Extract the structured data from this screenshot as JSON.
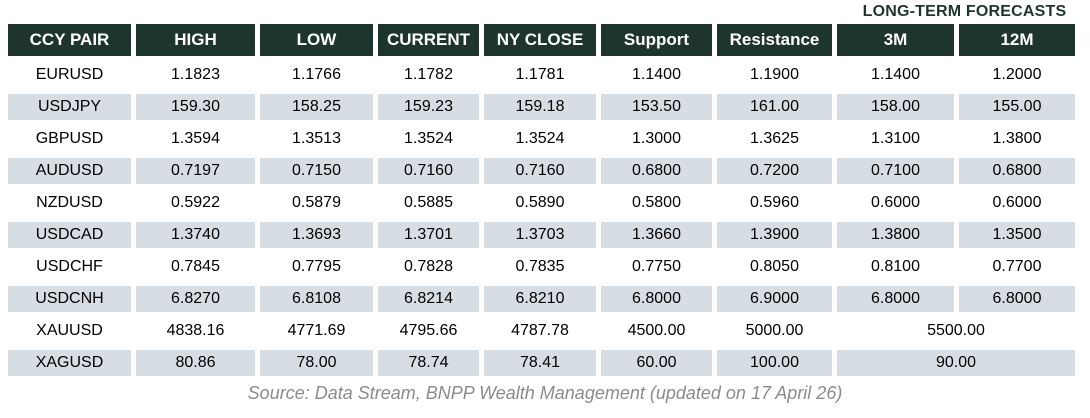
{
  "note": "LONG-TERM FORECASTS",
  "table": {
    "columns": [
      "CCY PAIR",
      "HIGH",
      "LOW",
      "CURRENT",
      "NY CLOSE",
      "Support",
      "Resistance",
      "3M",
      "12M"
    ],
    "rows": [
      {
        "cells": [
          "EURUSD",
          "1.1823",
          "1.1766",
          "1.1782",
          "1.1781",
          "1.1400",
          "1.1900",
          "1.1400",
          "1.2000"
        ],
        "merged_3m_12m": null
      },
      {
        "cells": [
          "USDJPY",
          "159.30",
          "158.25",
          "159.23",
          "159.18",
          "153.50",
          "161.00",
          "158.00",
          "155.00"
        ],
        "merged_3m_12m": null
      },
      {
        "cells": [
          "GBPUSD",
          "1.3594",
          "1.3513",
          "1.3524",
          "1.3524",
          "1.3000",
          "1.3625",
          "1.3100",
          "1.3800"
        ],
        "merged_3m_12m": null
      },
      {
        "cells": [
          "AUDUSD",
          "0.7197",
          "0.7150",
          "0.7160",
          "0.7160",
          "0.6800",
          "0.7200",
          "0.7100",
          "0.6800"
        ],
        "merged_3m_12m": null
      },
      {
        "cells": [
          "NZDUSD",
          "0.5922",
          "0.5879",
          "0.5885",
          "0.5890",
          "0.5800",
          "0.5960",
          "0.6000",
          "0.6000"
        ],
        "merged_3m_12m": null
      },
      {
        "cells": [
          "USDCAD",
          "1.3740",
          "1.3693",
          "1.3701",
          "1.3703",
          "1.3660",
          "1.3900",
          "1.3800",
          "1.3500"
        ],
        "merged_3m_12m": null
      },
      {
        "cells": [
          "USDCHF",
          "0.7845",
          "0.7795",
          "0.7828",
          "0.7835",
          "0.7750",
          "0.8050",
          "0.8100",
          "0.7700"
        ],
        "merged_3m_12m": null
      },
      {
        "cells": [
          "USDCNH",
          "6.8270",
          "6.8108",
          "6.8214",
          "6.8210",
          "6.8000",
          "6.9000",
          "6.8000",
          "6.8000"
        ],
        "merged_3m_12m": null
      },
      {
        "cells": [
          "XAUUSD",
          "4838.16",
          "4771.69",
          "4795.66",
          "4787.78",
          "4500.00",
          "5000.00"
        ],
        "merged_3m_12m": "5500.00"
      },
      {
        "cells": [
          "XAGUSD",
          "80.86",
          "78.00",
          "78.74",
          "78.41",
          "60.00",
          "100.00"
        ],
        "merged_3m_12m": "90.00"
      }
    ]
  },
  "source": "Source: Data Stream, BNPP Wealth Management (updated on 17 April 26)",
  "colors": {
    "header_bg": "#1e352f",
    "row_alt_bg": "#d6dee3",
    "note_color": "#1e352f",
    "source_color": "#8b8b8b"
  }
}
